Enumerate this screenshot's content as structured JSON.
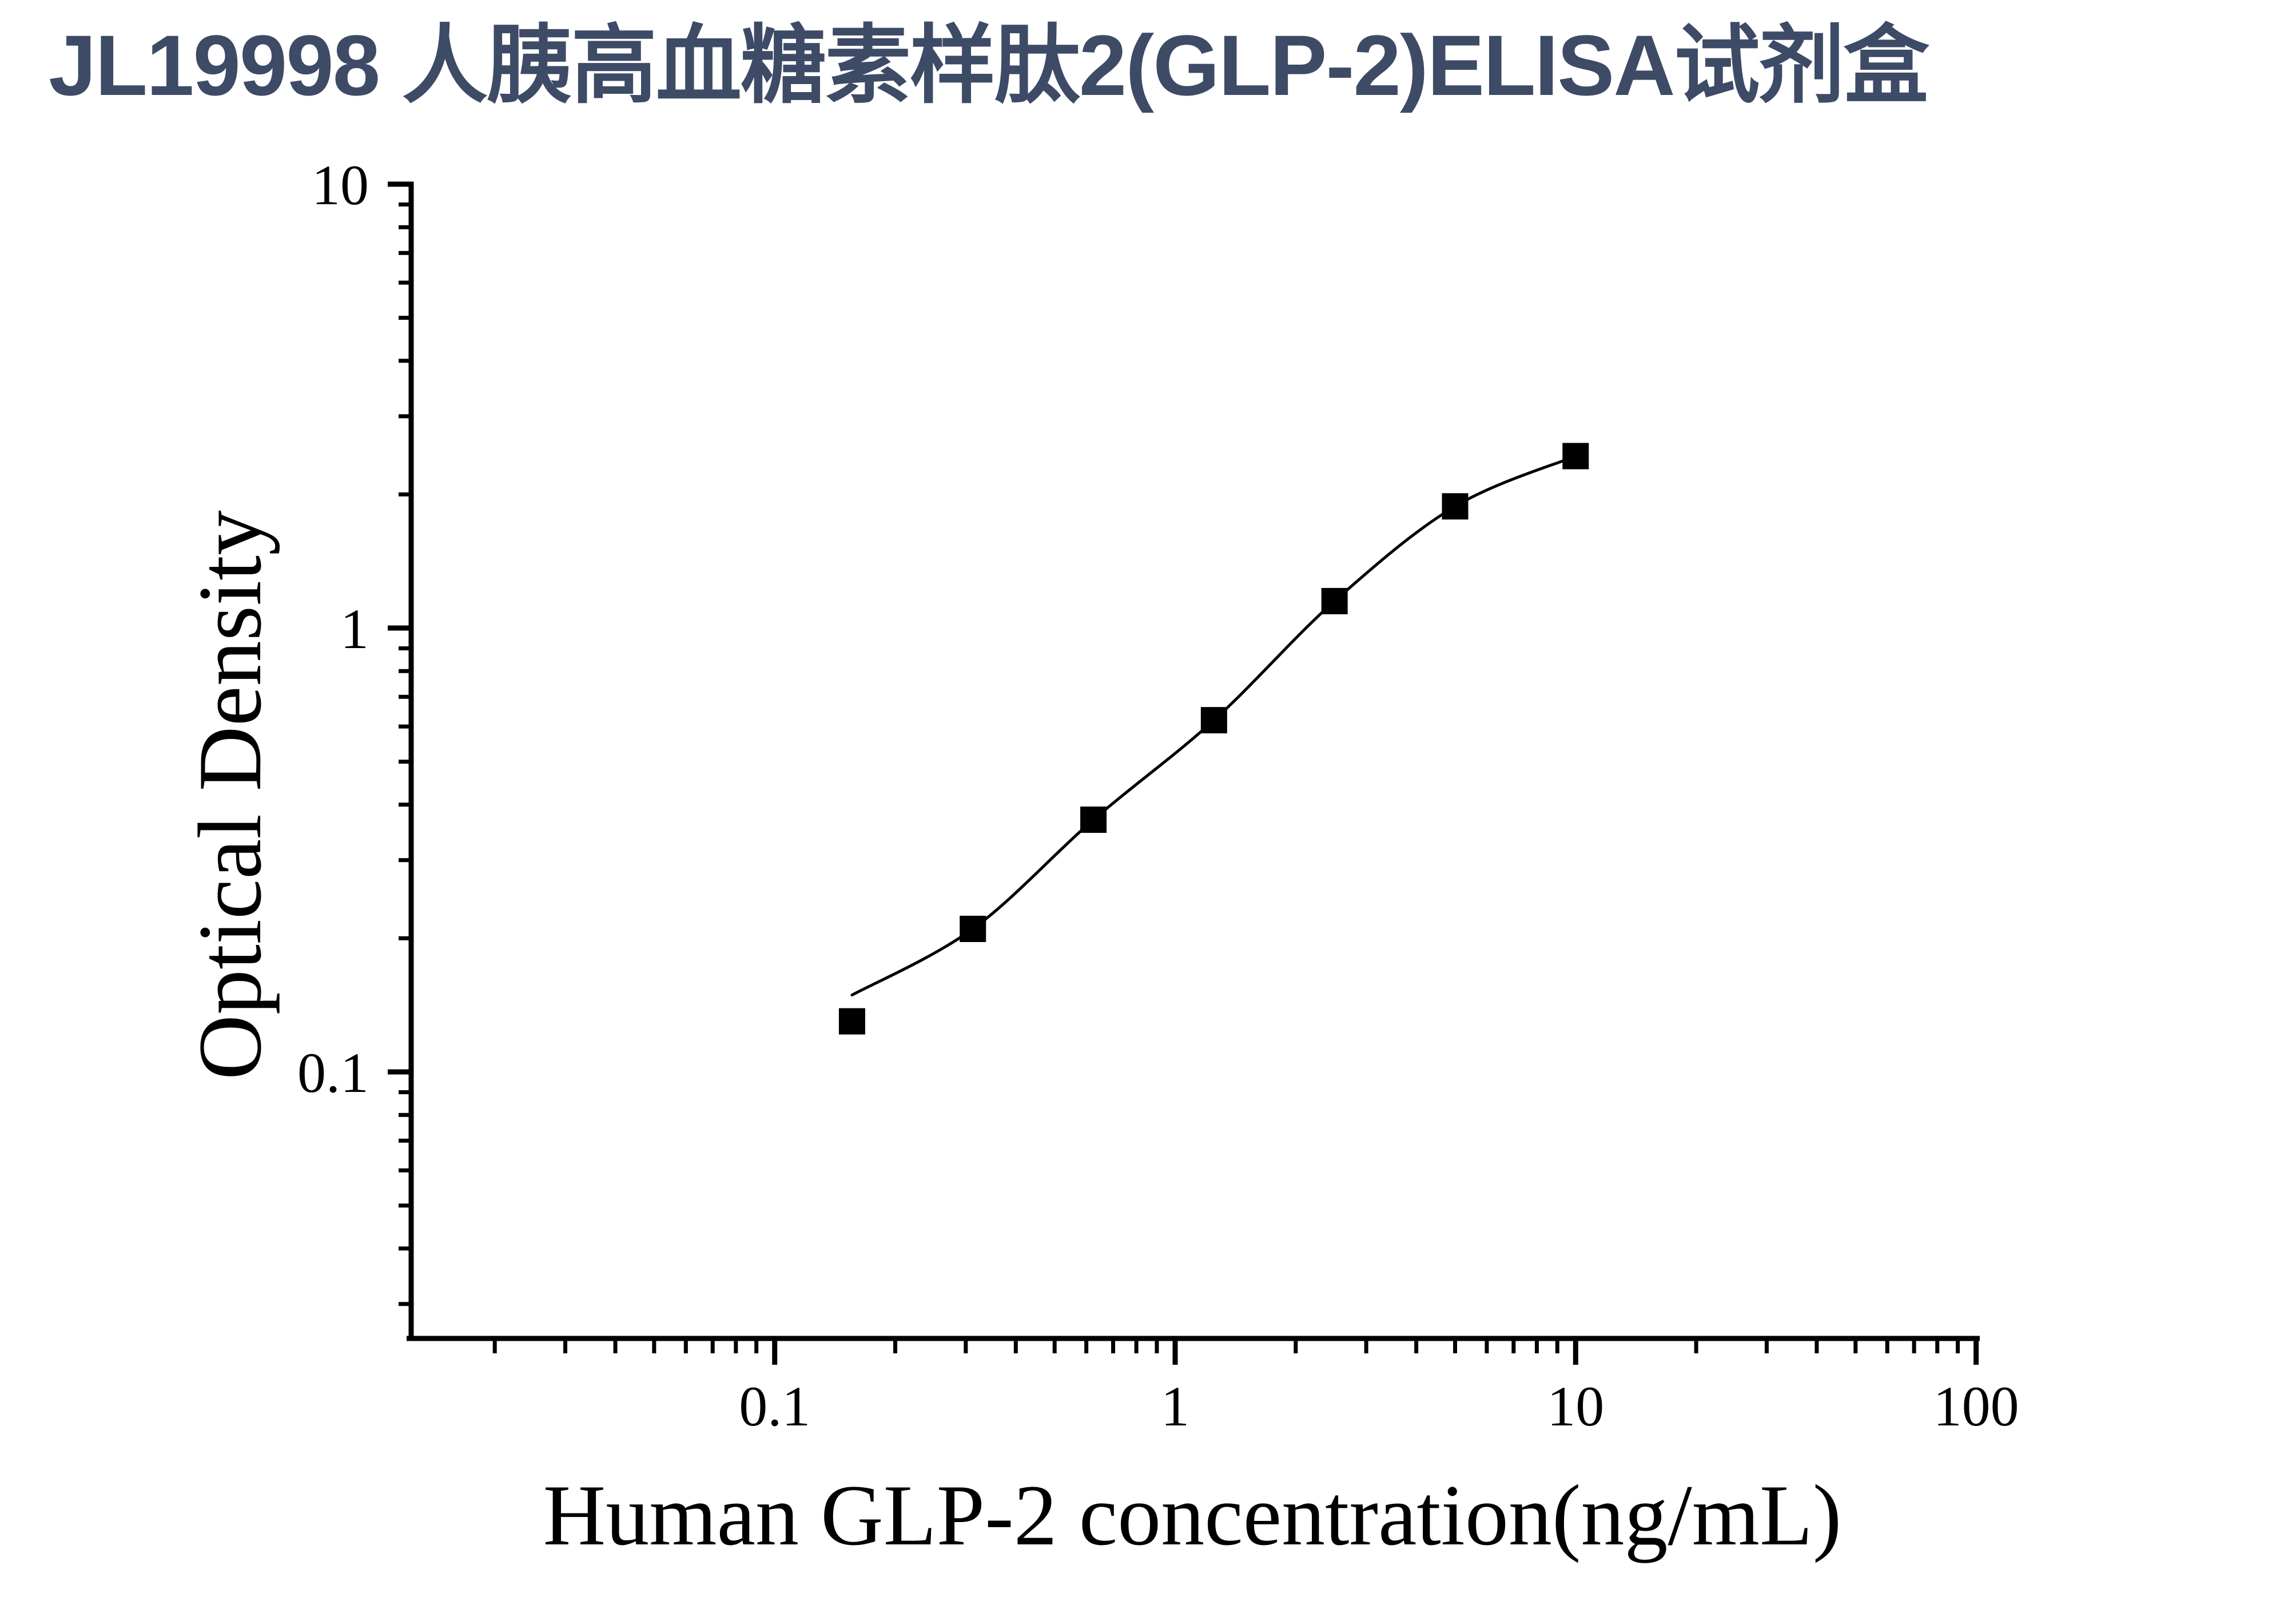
{
  "title": "JL19998 人胰高血糖素样肽2(GLP-2)ELISA试剂盒",
  "colors": {
    "title": "#3e4b66",
    "axis": "#000000",
    "curve": "#000000",
    "marker": "#000000",
    "background": "#ffffff"
  },
  "chart_data": {
    "type": "scatter",
    "title": "JL19998 人胰高血糖素样肽2(GLP-2)ELISA试剂盒",
    "xlabel": "Human GLP-2 concentration(ng/mL)",
    "ylabel": "Optical Density",
    "xscale": "log",
    "yscale": "log",
    "xlim": [
      0.012,
      105
    ],
    "ylim": [
      0.025,
      10
    ],
    "x": [
      0.156,
      0.3125,
      0.625,
      1.25,
      2.5,
      5,
      10
    ],
    "y": [
      0.13,
      0.21,
      0.37,
      0.62,
      1.15,
      1.88,
      2.44
    ],
    "x_tick_values": [
      0.1,
      1,
      10,
      100
    ],
    "x_tick_labels": [
      "0.1",
      "1",
      "10",
      "100"
    ],
    "y_tick_values": [
      10,
      1,
      0.1
    ],
    "y_tick_labels": [
      "10",
      "1",
      "0.1"
    ],
    "grid": false,
    "legend": false,
    "marker": "filled-square",
    "curve": "4PL-fit-through-points"
  }
}
